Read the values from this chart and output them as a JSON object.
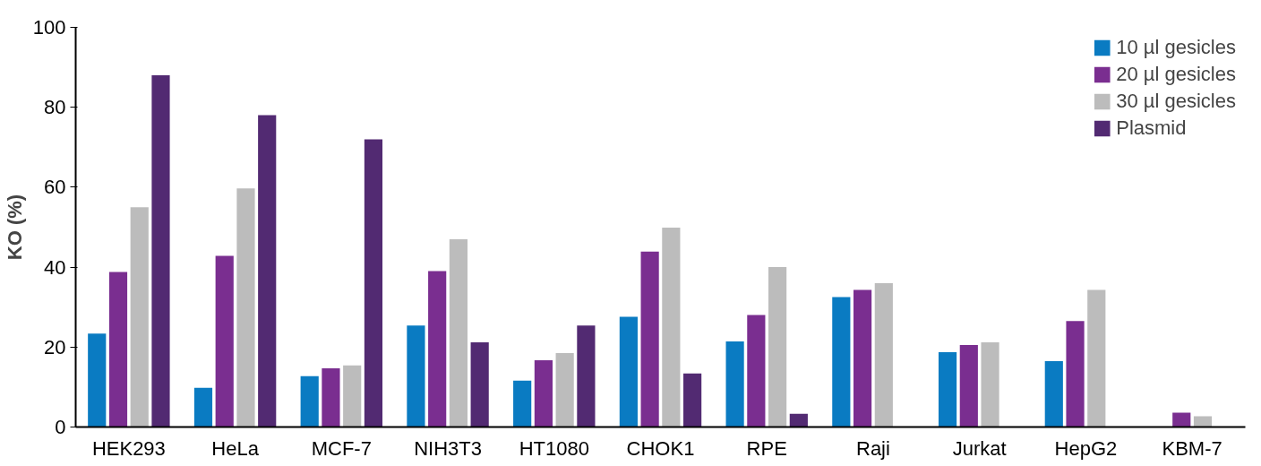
{
  "chart_data": {
    "type": "bar",
    "ylabel": "KO (%)",
    "categories": [
      "HEK293",
      "HeLa",
      "MCF-7",
      "NIH3T3",
      "HT1080",
      "CHOK1",
      "RPE",
      "Raji",
      "Jurkat",
      "HepG2",
      "KBM-7"
    ],
    "series": [
      {
        "name": "10 µl gesicles",
        "color": "#0a7bc2",
        "values": [
          23.4,
          9.8,
          12.7,
          25.4,
          11.6,
          27.6,
          21.4,
          32.5,
          18.7,
          16.5,
          null
        ]
      },
      {
        "name": "20 µl gesicles",
        "color": "#7a2e90",
        "values": [
          38.8,
          42.8,
          14.7,
          39,
          16.7,
          43.9,
          28,
          34.3,
          20.5,
          26.5,
          3.6
        ]
      },
      {
        "name": "30 µl gesicles",
        "color": "#bcbcbc",
        "values": [
          55,
          59.7,
          15.4,
          47,
          18.5,
          49.9,
          40,
          36,
          21.2,
          34.3,
          2.7
        ]
      },
      {
        "name": "Plasmid",
        "color": "#522a72",
        "values": [
          88,
          78,
          72,
          21.2,
          25.4,
          13.4,
          3.3,
          null,
          null,
          null,
          null
        ]
      }
    ],
    "ylim": [
      0,
      100
    ],
    "yticks": [
      0,
      20,
      40,
      60,
      80,
      100
    ],
    "grid": false,
    "legend": "top right"
  }
}
